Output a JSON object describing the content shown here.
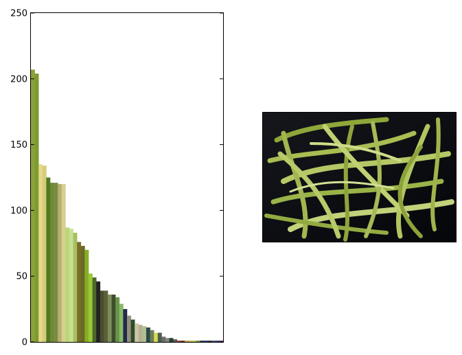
{
  "chart_data": {
    "type": "bar",
    "title": "",
    "xlabel": "",
    "ylabel": "",
    "ylim": [
      0,
      250
    ],
    "yticks": [
      0,
      50,
      100,
      150,
      200,
      250
    ],
    "ytick_labels": [
      "0",
      "50",
      "100",
      "150",
      "200",
      "250"
    ],
    "grid": false,
    "legend": "none",
    "values": [
      207,
      204,
      135,
      134,
      125,
      121,
      121,
      120,
      120,
      87,
      86,
      83,
      76,
      73,
      70,
      52,
      49,
      46,
      39,
      39,
      36,
      36,
      34,
      29,
      25,
      20,
      17,
      14,
      13,
      12,
      11,
      9,
      7,
      7,
      4,
      3,
      3,
      2,
      1,
      1,
      1,
      1,
      1,
      1,
      1,
      1,
      1,
      1,
      1,
      1
    ],
    "colors": [
      "#8aa23a",
      "#7e9a30",
      "#e4d98a",
      "#d8cc78",
      "#4e7a22",
      "#6e8a34",
      "#7a8a44",
      "#b8b070",
      "#d6d090",
      "#b8d878",
      "#c8e092",
      "#a8c060",
      "#7a6e28",
      "#6a6a26",
      "#86ae24",
      "#9cc838",
      "#4a6828",
      "#222222",
      "#4a4e32",
      "#5a6238",
      "#7e8e5c",
      "#3e4e2c",
      "#66944a",
      "#8ab868",
      "#222a4a",
      "#948e7c",
      "#2e4e2a",
      "#cac6a6",
      "#b8b090",
      "#b0c094",
      "#2a4a44",
      "#6e7e5e",
      "#dada4e",
      "#4a5e4e",
      "#6e6a6e",
      "#7e8a7e",
      "#2e3e2a",
      "#585860",
      "#9a3a2a",
      "#6e2a2a",
      "#a8a840",
      "#c8a840",
      "#a8b848",
      "#6e8e38",
      "#2a2e5a",
      "#2e3a6e",
      "#2a2a2a",
      "#44446e",
      "#2a3e6e",
      "#5a2a6e"
    ]
  },
  "photo": {
    "subject": "green beans"
  }
}
